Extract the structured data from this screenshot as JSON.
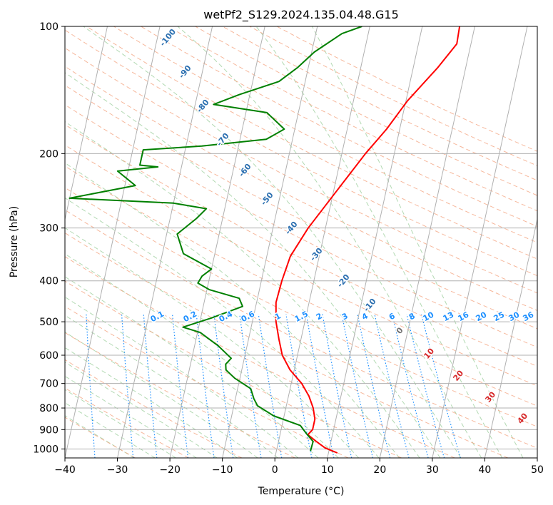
{
  "chart_data": {
    "type": "line",
    "title": "wetPf2_S129.2024.135.04.48.G15",
    "xlabel": "Temperature (°C)",
    "ylabel": "Pressure (hPa)",
    "xlim": [
      -40,
      50
    ],
    "ylim": [
      1050,
      100
    ],
    "y_scale": "log",
    "x_ticks": [
      -40,
      -30,
      -20,
      -10,
      0,
      10,
      20,
      30,
      40,
      50
    ],
    "y_ticks": [
      1000,
      900,
      800,
      700,
      600,
      500,
      400,
      300,
      200,
      100
    ],
    "grid": true,
    "series": [
      {
        "color": "#ff0000",
        "points": [
          [
            11.7,
            1022
          ],
          [
            9.2,
            995
          ],
          [
            7.2,
            960
          ],
          [
            5.3,
            925
          ],
          [
            6.0,
            900
          ],
          [
            6.0,
            850
          ],
          [
            5.2,
            800
          ],
          [
            3.9,
            750
          ],
          [
            2.0,
            700
          ],
          [
            -0.8,
            650
          ],
          [
            -2.9,
            600
          ],
          [
            -4.2,
            550
          ],
          [
            -5.5,
            500
          ],
          [
            -6.3,
            450
          ],
          [
            -6.1,
            400
          ],
          [
            -5.5,
            350
          ],
          [
            -3.3,
            300
          ],
          [
            0.2,
            250
          ],
          [
            4.5,
            200
          ],
          [
            7.5,
            175
          ],
          [
            10.3,
            150
          ],
          [
            14.7,
            125
          ],
          [
            17.3,
            110
          ],
          [
            17.1,
            100
          ]
        ]
      },
      {
        "color": "#008000",
        "points": [
          [
            6.5,
            1010
          ],
          [
            6.6,
            960
          ],
          [
            5.0,
            920
          ],
          [
            3.5,
            880
          ],
          [
            -2.0,
            835
          ],
          [
            -5.5,
            790
          ],
          [
            -6.5,
            760
          ],
          [
            -7.5,
            720
          ],
          [
            -11.0,
            680
          ],
          [
            -13.0,
            650
          ],
          [
            -13.3,
            630
          ],
          [
            -12.5,
            610
          ],
          [
            -15.5,
            570
          ],
          [
            -19.5,
            530
          ],
          [
            -23.0,
            515
          ],
          [
            -18.0,
            490
          ],
          [
            -12.5,
            460
          ],
          [
            -13.5,
            440
          ],
          [
            -19.5,
            420
          ],
          [
            -22.0,
            405
          ],
          [
            -21.5,
            390
          ],
          [
            -20.0,
            375
          ],
          [
            -26.0,
            345
          ],
          [
            -28.0,
            310
          ],
          [
            -25.0,
            285
          ],
          [
            -23.5,
            270
          ],
          [
            -30.0,
            262
          ],
          [
            -50.0,
            255
          ],
          [
            -38.0,
            238
          ],
          [
            -42.0,
            220
          ],
          [
            -34.5,
            215
          ],
          [
            -38.0,
            213
          ],
          [
            -38.0,
            196
          ],
          [
            -27.0,
            192
          ],
          [
            -15.0,
            185
          ],
          [
            -12.0,
            175
          ],
          [
            -16.0,
            160
          ],
          [
            -26.5,
            153
          ],
          [
            -22.0,
            145
          ],
          [
            -15.0,
            135
          ],
          [
            -12.0,
            125
          ],
          [
            -9.5,
            115
          ],
          [
            -5.0,
            104
          ],
          [
            -1.5,
            100
          ]
        ]
      }
    ],
    "dry_adiabat_labels": [
      "-100",
      "-90",
      "-80",
      "-70",
      "-60",
      "-50",
      "-40",
      "-30",
      "-20",
      "-10"
    ],
    "moist_adiabat_labels": [
      "0",
      "10",
      "20",
      "30",
      "40"
    ],
    "mixing_ratio_labels": [
      "0.1",
      "0.2",
      "0.4",
      "0.6",
      "1",
      "1.5",
      "2",
      "3",
      "4",
      "6",
      "8",
      "10",
      "13",
      "16",
      "20",
      "25",
      "30",
      "36"
    ]
  }
}
